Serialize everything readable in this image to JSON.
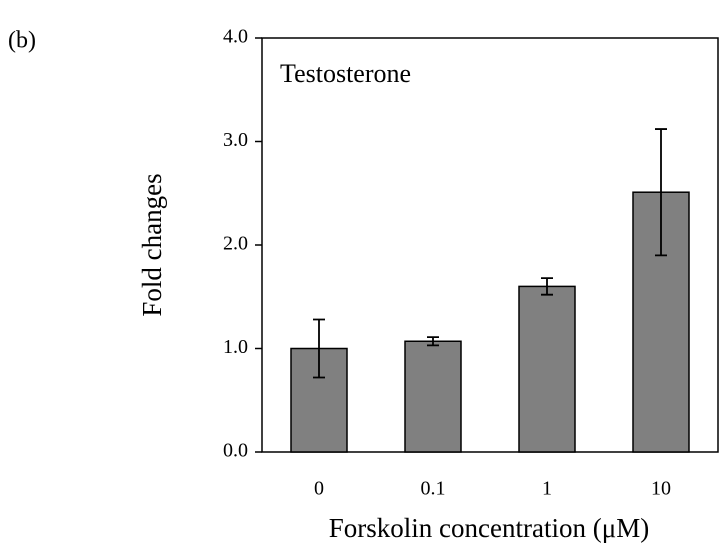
{
  "panel_label": "(b)",
  "chart_data": {
    "type": "bar",
    "title": "Testosterone",
    "x_label": "Forskolin concentration (μM)",
    "y_label": "Fold changes",
    "categories": [
      "0",
      "0.1",
      "1",
      "10"
    ],
    "values": [
      1.0,
      1.07,
      1.6,
      2.51
    ],
    "errors": [
      0.28,
      0.04,
      0.08,
      0.61
    ],
    "color": "#808080",
    "ylim": [
      0,
      4
    ],
    "yticks": [
      {
        "value": 0,
        "label": "0.0"
      },
      {
        "value": 1,
        "label": "1.0"
      },
      {
        "value": 2,
        "label": "2.0"
      },
      {
        "value": 3,
        "label": "3.0"
      },
      {
        "value": 4,
        "label": "4.0"
      }
    ]
  }
}
